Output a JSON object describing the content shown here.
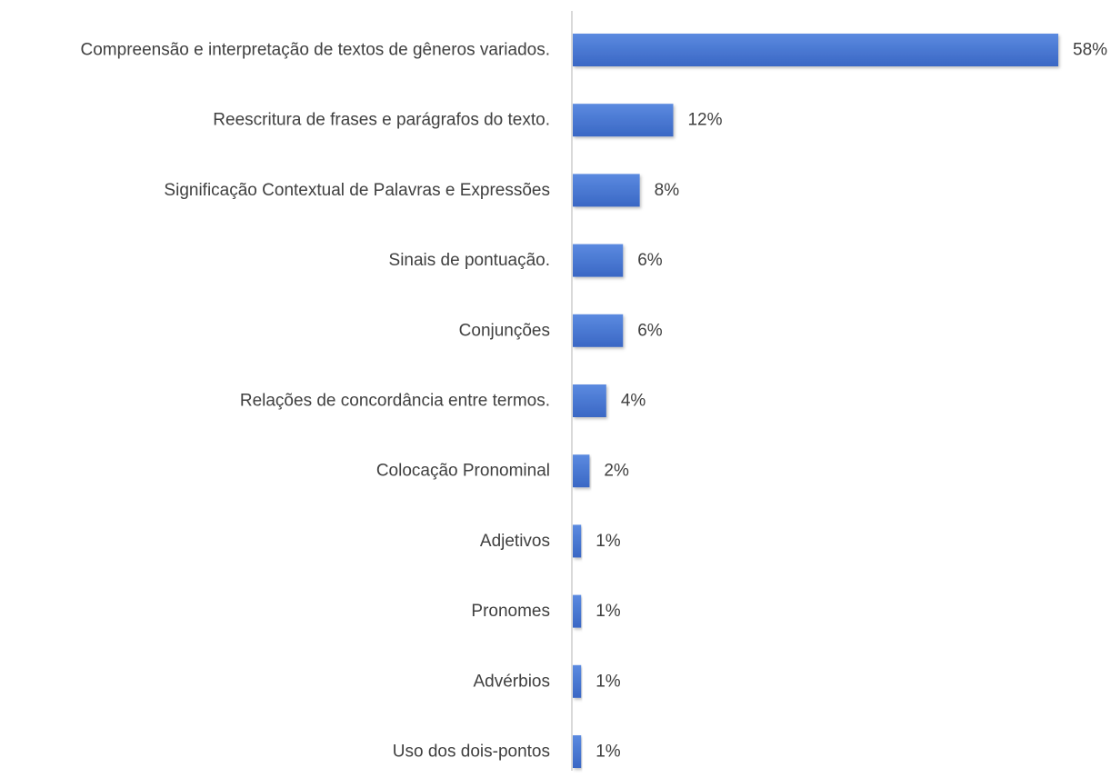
{
  "chart_data": {
    "type": "bar",
    "orientation": "horizontal",
    "title": "",
    "xlabel": "",
    "ylabel": "",
    "grid": false,
    "legend": "none",
    "xlim": [
      0,
      58
    ],
    "categories": [
      "Compreensão e interpretação de textos de gêneros variados.",
      "Reescritura de frases e parágrafos do texto.",
      "Significação Contextual de Palavras e Expressões",
      "Sinais de pontuação.",
      "Conjunções",
      "Relações de concordância entre termos.",
      "Colocação Pronominal",
      "Adjetivos",
      "Pronomes",
      "Advérbios",
      "Uso dos dois-pontos"
    ],
    "values": [
      58,
      12,
      8,
      6,
      6,
      4,
      2,
      1,
      1,
      1,
      1
    ],
    "data_labels": [
      "58%",
      "12%",
      "8%",
      "6%",
      "6%",
      "4%",
      "2%",
      "1%",
      "1%",
      "1%",
      "1%"
    ],
    "colors": {
      "bar_top": "#5b8ae0",
      "bar_bottom": "#3a67c4",
      "axis": "#d9d9d9",
      "text": "#404040"
    }
  }
}
